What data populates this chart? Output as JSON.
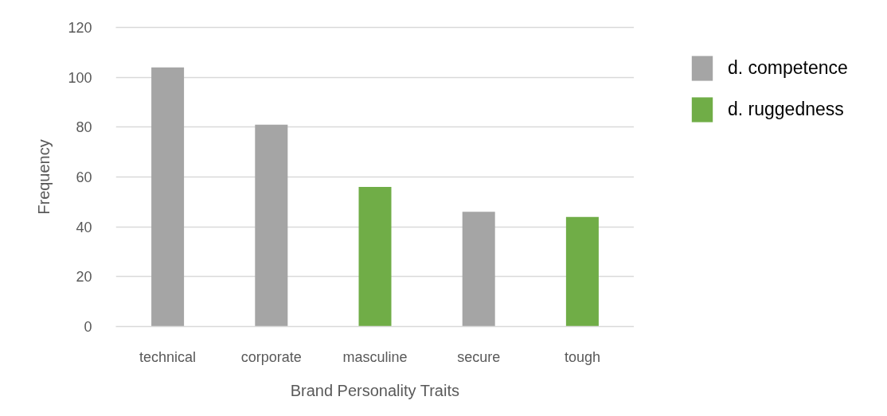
{
  "chart_data": {
    "type": "bar",
    "xlabel": "Brand Personality Traits",
    "ylabel": "Frequency",
    "categories": [
      "technical",
      "corporate",
      "masculine",
      "secure",
      "tough"
    ],
    "series": [
      {
        "name": "d. competence",
        "color": "#a5a5a5",
        "values": [
          104,
          81,
          null,
          46,
          null
        ]
      },
      {
        "name": "d. ruggedness",
        "color": "#70ad47",
        "values": [
          null,
          null,
          56,
          null,
          44
        ]
      }
    ],
    "stacked": true,
    "ylim": [
      0,
      120
    ],
    "yticks": [
      0,
      20,
      40,
      60,
      80,
      100,
      120
    ],
    "grid": "y",
    "legend": "right"
  }
}
